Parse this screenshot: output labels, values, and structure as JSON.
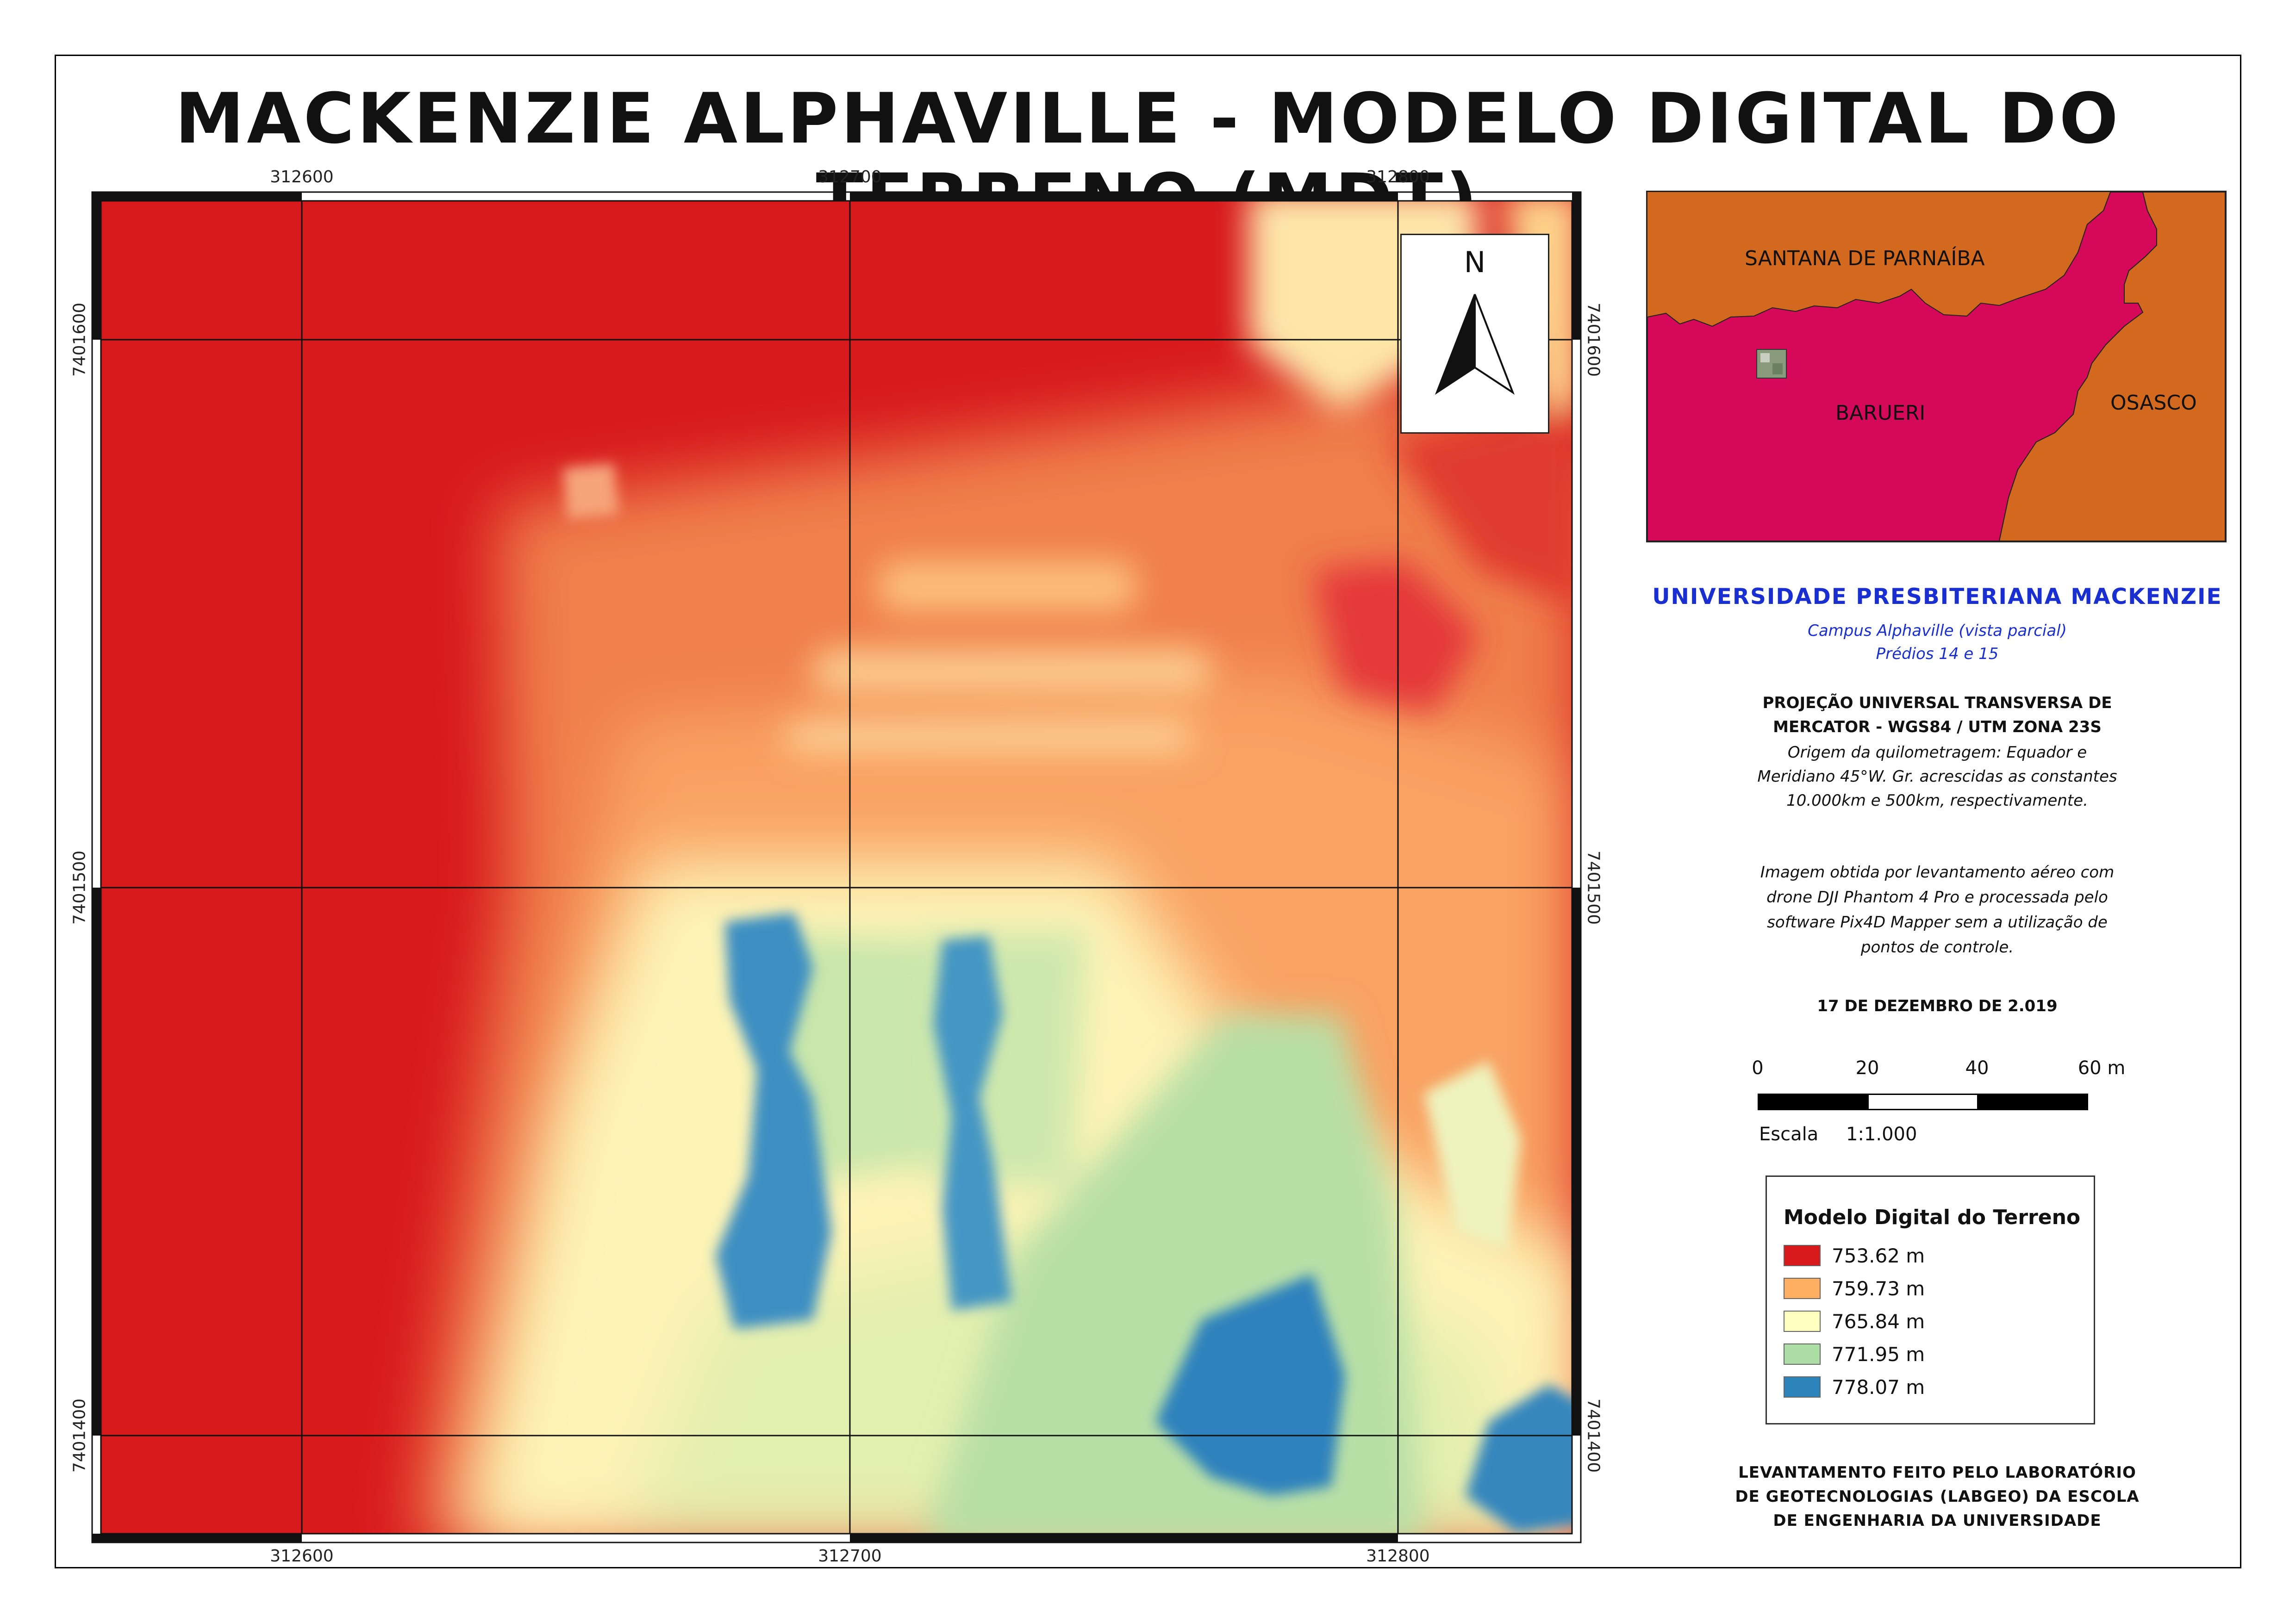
{
  "title": "MACKENZIE ALPHAVILLE - MODELO DIGITAL DO TERRENO (MDT)",
  "map": {
    "easting_labels": [
      "312600",
      "312700",
      "312800"
    ],
    "northing_labels": [
      "7401600",
      "7401500",
      "7401400"
    ],
    "north_arrow_letter": "N"
  },
  "locator": {
    "labels": {
      "santana": "SANTANA DE PARNAÍBA",
      "barueri": "BARUERI",
      "osasco": "OSASCO"
    },
    "colors": {
      "santana_osasco": "#d2691e",
      "barueri": "#d6085a"
    }
  },
  "info": {
    "university": "UNIVERSIDADE PRESBITERIANA MACKENZIE",
    "campus_lines": [
      "Campus Alphaville (vista parcial)",
      "Prédios 14 e 15"
    ],
    "projection_lines": [
      "PROJEÇÃO UNIVERSAL TRANSVERSA DE",
      "MERCATOR - WGS84 / UTM ZONA 23S"
    ],
    "origin_lines": [
      "Origem da quilometragem: Equador e",
      "Meridiano 45°W. Gr. acrescidas as constantes",
      "10.000km e 500km, respectivamente."
    ],
    "image_note_lines": [
      "Imagem obtida por levantamento aéreo com",
      "drone DJI Phantom 4 Pro e processada pelo",
      "software Pix4D Mapper sem a utilização de",
      "pontos de controle."
    ],
    "date": "17 DE DEZEMBRO DE 2.019",
    "credit_lines": [
      "LEVANTAMENTO FEITO PELO LABORATÓRIO",
      "DE GEOTECNOLOGIAS (LABGEO) DA ESCOLA",
      "DE ENGENHARIA DA UNIVERSIDADE"
    ]
  },
  "scale": {
    "ticks": [
      "0",
      "20",
      "40",
      "60 m"
    ],
    "label": "Escala",
    "ratio": "1:1.000"
  },
  "legend": {
    "title": "Modelo Digital do Terreno",
    "items": [
      {
        "label": "753.62 m",
        "color": "#d7191c"
      },
      {
        "label": "759.73 m",
        "color": "#fdae61"
      },
      {
        "label": "765.84 m",
        "color": "#ffffc0"
      },
      {
        "label": "771.95 m",
        "color": "#abdda4"
      },
      {
        "label": "778.07 m",
        "color": "#2b83ba"
      }
    ]
  }
}
